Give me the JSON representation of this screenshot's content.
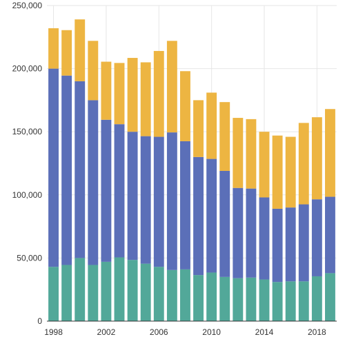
{
  "chart_data": {
    "type": "bar",
    "stacked": true,
    "title": "",
    "xlabel": "",
    "ylabel": "",
    "categories": [
      "1998",
      "1999",
      "2000",
      "2001",
      "2002",
      "2003",
      "2004",
      "2005",
      "2006",
      "2007",
      "2008",
      "2009",
      "2010",
      "2011",
      "2012",
      "2013",
      "2014",
      "2015",
      "2016",
      "2017",
      "2018",
      "2019"
    ],
    "x_tick_labels": [
      "1998",
      "2002",
      "2006",
      "2010",
      "2014",
      "2018"
    ],
    "y_tick_labels": [
      "0",
      "50,000",
      "100,000",
      "150,000",
      "200,000",
      "250,000"
    ],
    "ylim": [
      0,
      250000
    ],
    "y_ticks": [
      0,
      50000,
      100000,
      150000,
      200000,
      250000
    ],
    "grid": true,
    "legend": "none",
    "colors": [
      "#52a899",
      "#5b6fb8",
      "#edb542"
    ],
    "series": [
      {
        "values": [
          43000,
          44500,
          50000,
          44500,
          47000,
          50500,
          48500,
          45500,
          43000,
          40500,
          41000,
          36500,
          38500,
          35000,
          34000,
          34500,
          33000,
          31000,
          31500,
          31500,
          35500,
          38000
        ]
      },
      {
        "values": [
          157000,
          150000,
          140000,
          130500,
          112500,
          105500,
          101500,
          101000,
          103000,
          109000,
          101500,
          93500,
          90000,
          84000,
          71500,
          70500,
          65000,
          58000,
          58500,
          61000,
          61000,
          60500
        ]
      },
      {
        "values": [
          32000,
          36000,
          49000,
          47000,
          46000,
          48500,
          58500,
          58500,
          68000,
          72500,
          55500,
          45000,
          52500,
          54500,
          55500,
          55000,
          52000,
          58000,
          56000,
          64500,
          65000,
          69500
        ]
      }
    ]
  }
}
